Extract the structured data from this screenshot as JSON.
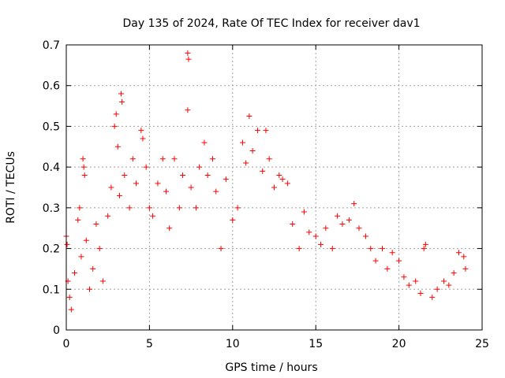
{
  "chart_data": {
    "type": "scatter",
    "title": "Day 135 of 2024, Rate Of TEC Index for receiver dav1",
    "xlabel": "GPS time / hours",
    "ylabel": "ROTI / TECUs",
    "xlim": [
      0,
      25
    ],
    "ylim": [
      0,
      0.7
    ],
    "xticks": [
      0,
      5,
      10,
      15,
      20,
      25
    ],
    "yticks": [
      0,
      0.1,
      0.2,
      0.3,
      0.4,
      0.5,
      0.6,
      0.7
    ],
    "xtick_labels": [
      "0",
      "5",
      "10",
      "15",
      "20",
      "25"
    ],
    "ytick_labels": [
      "0",
      "0.1",
      "0.2",
      "0.3",
      "0.4",
      "0.5",
      "0.6",
      "0.7"
    ],
    "grid": true,
    "marker": "plus",
    "color": "#ff0000",
    "series": [
      {
        "points": [
          [
            0.0,
            0.23
          ],
          [
            0.05,
            0.21
          ],
          [
            0.1,
            0.12
          ],
          [
            0.2,
            0.08
          ],
          [
            0.3,
            0.05
          ],
          [
            0.5,
            0.14
          ],
          [
            0.7,
            0.27
          ],
          [
            0.8,
            0.3
          ],
          [
            0.9,
            0.18
          ],
          [
            1.0,
            0.42
          ],
          [
            1.05,
            0.4
          ],
          [
            1.1,
            0.38
          ],
          [
            1.2,
            0.22
          ],
          [
            1.4,
            0.1
          ],
          [
            1.6,
            0.15
          ],
          [
            1.8,
            0.26
          ],
          [
            2.0,
            0.2
          ],
          [
            2.2,
            0.12
          ],
          [
            2.5,
            0.28
          ],
          [
            2.7,
            0.35
          ],
          [
            2.9,
            0.5
          ],
          [
            3.0,
            0.53
          ],
          [
            3.1,
            0.45
          ],
          [
            3.2,
            0.33
          ],
          [
            3.3,
            0.58
          ],
          [
            3.35,
            0.56
          ],
          [
            3.5,
            0.38
          ],
          [
            3.8,
            0.3
          ],
          [
            4.0,
            0.42
          ],
          [
            4.2,
            0.36
          ],
          [
            4.5,
            0.49
          ],
          [
            4.6,
            0.47
          ],
          [
            4.8,
            0.4
          ],
          [
            5.0,
            0.3
          ],
          [
            5.2,
            0.28
          ],
          [
            5.5,
            0.36
          ],
          [
            5.8,
            0.42
          ],
          [
            6.0,
            0.34
          ],
          [
            6.2,
            0.25
          ],
          [
            6.5,
            0.42
          ],
          [
            6.8,
            0.3
          ],
          [
            7.0,
            0.38
          ],
          [
            7.3,
            0.68
          ],
          [
            7.35,
            0.665
          ],
          [
            7.3,
            0.54
          ],
          [
            7.5,
            0.35
          ],
          [
            7.8,
            0.3
          ],
          [
            8.0,
            0.4
          ],
          [
            8.3,
            0.46
          ],
          [
            8.5,
            0.38
          ],
          [
            8.8,
            0.42
          ],
          [
            9.0,
            0.34
          ],
          [
            9.3,
            0.2
          ],
          [
            9.6,
            0.37
          ],
          [
            10.0,
            0.27
          ],
          [
            10.3,
            0.3
          ],
          [
            10.6,
            0.46
          ],
          [
            10.8,
            0.41
          ],
          [
            11.0,
            0.525
          ],
          [
            11.2,
            0.44
          ],
          [
            11.5,
            0.49
          ],
          [
            11.8,
            0.39
          ],
          [
            12.0,
            0.49
          ],
          [
            12.2,
            0.42
          ],
          [
            12.5,
            0.35
          ],
          [
            12.8,
            0.38
          ],
          [
            13.0,
            0.37
          ],
          [
            13.3,
            0.36
          ],
          [
            13.6,
            0.26
          ],
          [
            14.0,
            0.2
          ],
          [
            14.3,
            0.29
          ],
          [
            14.6,
            0.24
          ],
          [
            15.0,
            0.23
          ],
          [
            15.3,
            0.21
          ],
          [
            15.6,
            0.25
          ],
          [
            16.0,
            0.2
          ],
          [
            16.3,
            0.28
          ],
          [
            16.6,
            0.26
          ],
          [
            17.0,
            0.27
          ],
          [
            17.3,
            0.31
          ],
          [
            17.6,
            0.25
          ],
          [
            18.0,
            0.23
          ],
          [
            18.3,
            0.2
          ],
          [
            18.6,
            0.17
          ],
          [
            19.0,
            0.2
          ],
          [
            19.3,
            0.15
          ],
          [
            19.6,
            0.19
          ],
          [
            20.0,
            0.17
          ],
          [
            20.3,
            0.13
          ],
          [
            20.6,
            0.11
          ],
          [
            21.0,
            0.12
          ],
          [
            21.3,
            0.09
          ],
          [
            21.5,
            0.2
          ],
          [
            21.6,
            0.21
          ],
          [
            22.0,
            0.08
          ],
          [
            22.3,
            0.1
          ],
          [
            22.7,
            0.12
          ],
          [
            23.0,
            0.11
          ],
          [
            23.3,
            0.14
          ],
          [
            23.6,
            0.19
          ],
          [
            23.9,
            0.18
          ],
          [
            24.0,
            0.15
          ]
        ]
      }
    ]
  }
}
